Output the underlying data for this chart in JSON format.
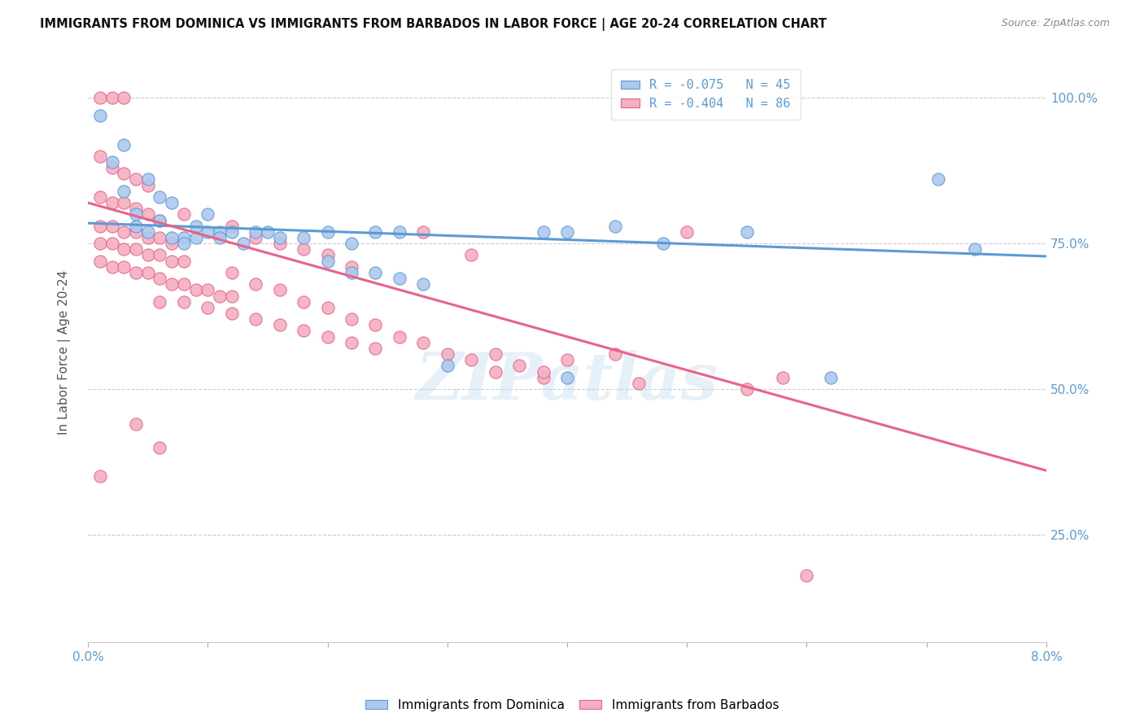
{
  "title": "IMMIGRANTS FROM DOMINICA VS IMMIGRANTS FROM BARBADOS IN LABOR FORCE | AGE 20-24 CORRELATION CHART",
  "source": "Source: ZipAtlas.com",
  "ylabel": "In Labor Force | Age 20-24",
  "ytick_labels": [
    "100.0%",
    "75.0%",
    "50.0%",
    "25.0%"
  ],
  "ytick_values": [
    1.0,
    0.75,
    0.5,
    0.25
  ],
  "xlim": [
    0.0,
    0.08
  ],
  "ylim": [
    0.065,
    1.06
  ],
  "watermark": "ZIPatlas",
  "legend_r1": "R = -0.075   N = 45",
  "legend_r2": "R = -0.404   N = 86",
  "dominica_color": "#adc8ed",
  "barbados_color": "#f4afc0",
  "dominica_edge_color": "#5b9bd5",
  "barbados_edge_color": "#e8638a",
  "dominica_line_color": "#5b9bd5",
  "barbados_line_color": "#e8638a",
  "dominica_trend": [
    0.0,
    0.08,
    0.785,
    0.728
  ],
  "barbados_trend": [
    0.0,
    0.08,
    0.82,
    0.36
  ],
  "dominica_scatter": [
    [
      0.001,
      0.97
    ],
    [
      0.002,
      0.89
    ],
    [
      0.003,
      0.92
    ],
    [
      0.004,
      0.78
    ],
    [
      0.003,
      0.84
    ],
    [
      0.005,
      0.86
    ],
    [
      0.006,
      0.83
    ],
    [
      0.004,
      0.8
    ],
    [
      0.007,
      0.82
    ],
    [
      0.008,
      0.76
    ],
    [
      0.005,
      0.77
    ],
    [
      0.009,
      0.78
    ],
    [
      0.01,
      0.8
    ],
    [
      0.006,
      0.79
    ],
    [
      0.011,
      0.77
    ],
    [
      0.012,
      0.77
    ],
    [
      0.007,
      0.76
    ],
    [
      0.013,
      0.75
    ],
    [
      0.008,
      0.75
    ],
    [
      0.014,
      0.77
    ],
    [
      0.009,
      0.76
    ],
    [
      0.015,
      0.77
    ],
    [
      0.01,
      0.77
    ],
    [
      0.016,
      0.76
    ],
    [
      0.011,
      0.76
    ],
    [
      0.018,
      0.76
    ],
    [
      0.02,
      0.77
    ],
    [
      0.022,
      0.75
    ],
    [
      0.024,
      0.77
    ],
    [
      0.026,
      0.77
    ],
    [
      0.02,
      0.72
    ],
    [
      0.022,
      0.7
    ],
    [
      0.024,
      0.7
    ],
    [
      0.026,
      0.69
    ],
    [
      0.028,
      0.68
    ],
    [
      0.03,
      0.54
    ],
    [
      0.038,
      0.77
    ],
    [
      0.04,
      0.52
    ],
    [
      0.04,
      0.77
    ],
    [
      0.044,
      0.78
    ],
    [
      0.048,
      0.75
    ],
    [
      0.055,
      0.77
    ],
    [
      0.062,
      0.52
    ],
    [
      0.071,
      0.86
    ],
    [
      0.074,
      0.74
    ]
  ],
  "barbados_scatter": [
    [
      0.001,
      1.0
    ],
    [
      0.002,
      1.0
    ],
    [
      0.003,
      1.0
    ],
    [
      0.001,
      0.9
    ],
    [
      0.002,
      0.88
    ],
    [
      0.003,
      0.87
    ],
    [
      0.004,
      0.86
    ],
    [
      0.005,
      0.85
    ],
    [
      0.001,
      0.83
    ],
    [
      0.002,
      0.82
    ],
    [
      0.003,
      0.82
    ],
    [
      0.004,
      0.81
    ],
    [
      0.005,
      0.8
    ],
    [
      0.006,
      0.79
    ],
    [
      0.001,
      0.78
    ],
    [
      0.002,
      0.78
    ],
    [
      0.003,
      0.77
    ],
    [
      0.004,
      0.77
    ],
    [
      0.005,
      0.76
    ],
    [
      0.006,
      0.76
    ],
    [
      0.007,
      0.75
    ],
    [
      0.001,
      0.75
    ],
    [
      0.002,
      0.75
    ],
    [
      0.003,
      0.74
    ],
    [
      0.004,
      0.74
    ],
    [
      0.005,
      0.73
    ],
    [
      0.006,
      0.73
    ],
    [
      0.007,
      0.72
    ],
    [
      0.008,
      0.72
    ],
    [
      0.001,
      0.72
    ],
    [
      0.002,
      0.71
    ],
    [
      0.003,
      0.71
    ],
    [
      0.004,
      0.7
    ],
    [
      0.005,
      0.7
    ],
    [
      0.006,
      0.69
    ],
    [
      0.007,
      0.68
    ],
    [
      0.008,
      0.68
    ],
    [
      0.009,
      0.67
    ],
    [
      0.01,
      0.67
    ],
    [
      0.011,
      0.66
    ],
    [
      0.012,
      0.66
    ],
    [
      0.006,
      0.65
    ],
    [
      0.008,
      0.65
    ],
    [
      0.01,
      0.64
    ],
    [
      0.012,
      0.63
    ],
    [
      0.014,
      0.62
    ],
    [
      0.016,
      0.61
    ],
    [
      0.018,
      0.6
    ],
    [
      0.02,
      0.59
    ],
    [
      0.022,
      0.58
    ],
    [
      0.024,
      0.57
    ],
    [
      0.008,
      0.8
    ],
    [
      0.012,
      0.78
    ],
    [
      0.014,
      0.76
    ],
    [
      0.016,
      0.75
    ],
    [
      0.018,
      0.74
    ],
    [
      0.02,
      0.73
    ],
    [
      0.022,
      0.71
    ],
    [
      0.012,
      0.7
    ],
    [
      0.014,
      0.68
    ],
    [
      0.016,
      0.67
    ],
    [
      0.018,
      0.65
    ],
    [
      0.02,
      0.64
    ],
    [
      0.022,
      0.62
    ],
    [
      0.024,
      0.61
    ],
    [
      0.026,
      0.59
    ],
    [
      0.028,
      0.58
    ],
    [
      0.03,
      0.56
    ],
    [
      0.032,
      0.55
    ],
    [
      0.034,
      0.53
    ],
    [
      0.028,
      0.77
    ],
    [
      0.032,
      0.73
    ],
    [
      0.034,
      0.56
    ],
    [
      0.036,
      0.54
    ],
    [
      0.038,
      0.52
    ],
    [
      0.04,
      0.55
    ],
    [
      0.044,
      0.56
    ],
    [
      0.046,
      0.51
    ],
    [
      0.004,
      0.44
    ],
    [
      0.006,
      0.4
    ],
    [
      0.038,
      0.53
    ],
    [
      0.055,
      0.5
    ],
    [
      0.058,
      0.52
    ],
    [
      0.05,
      0.77
    ],
    [
      0.06,
      0.18
    ],
    [
      0.001,
      0.35
    ]
  ]
}
